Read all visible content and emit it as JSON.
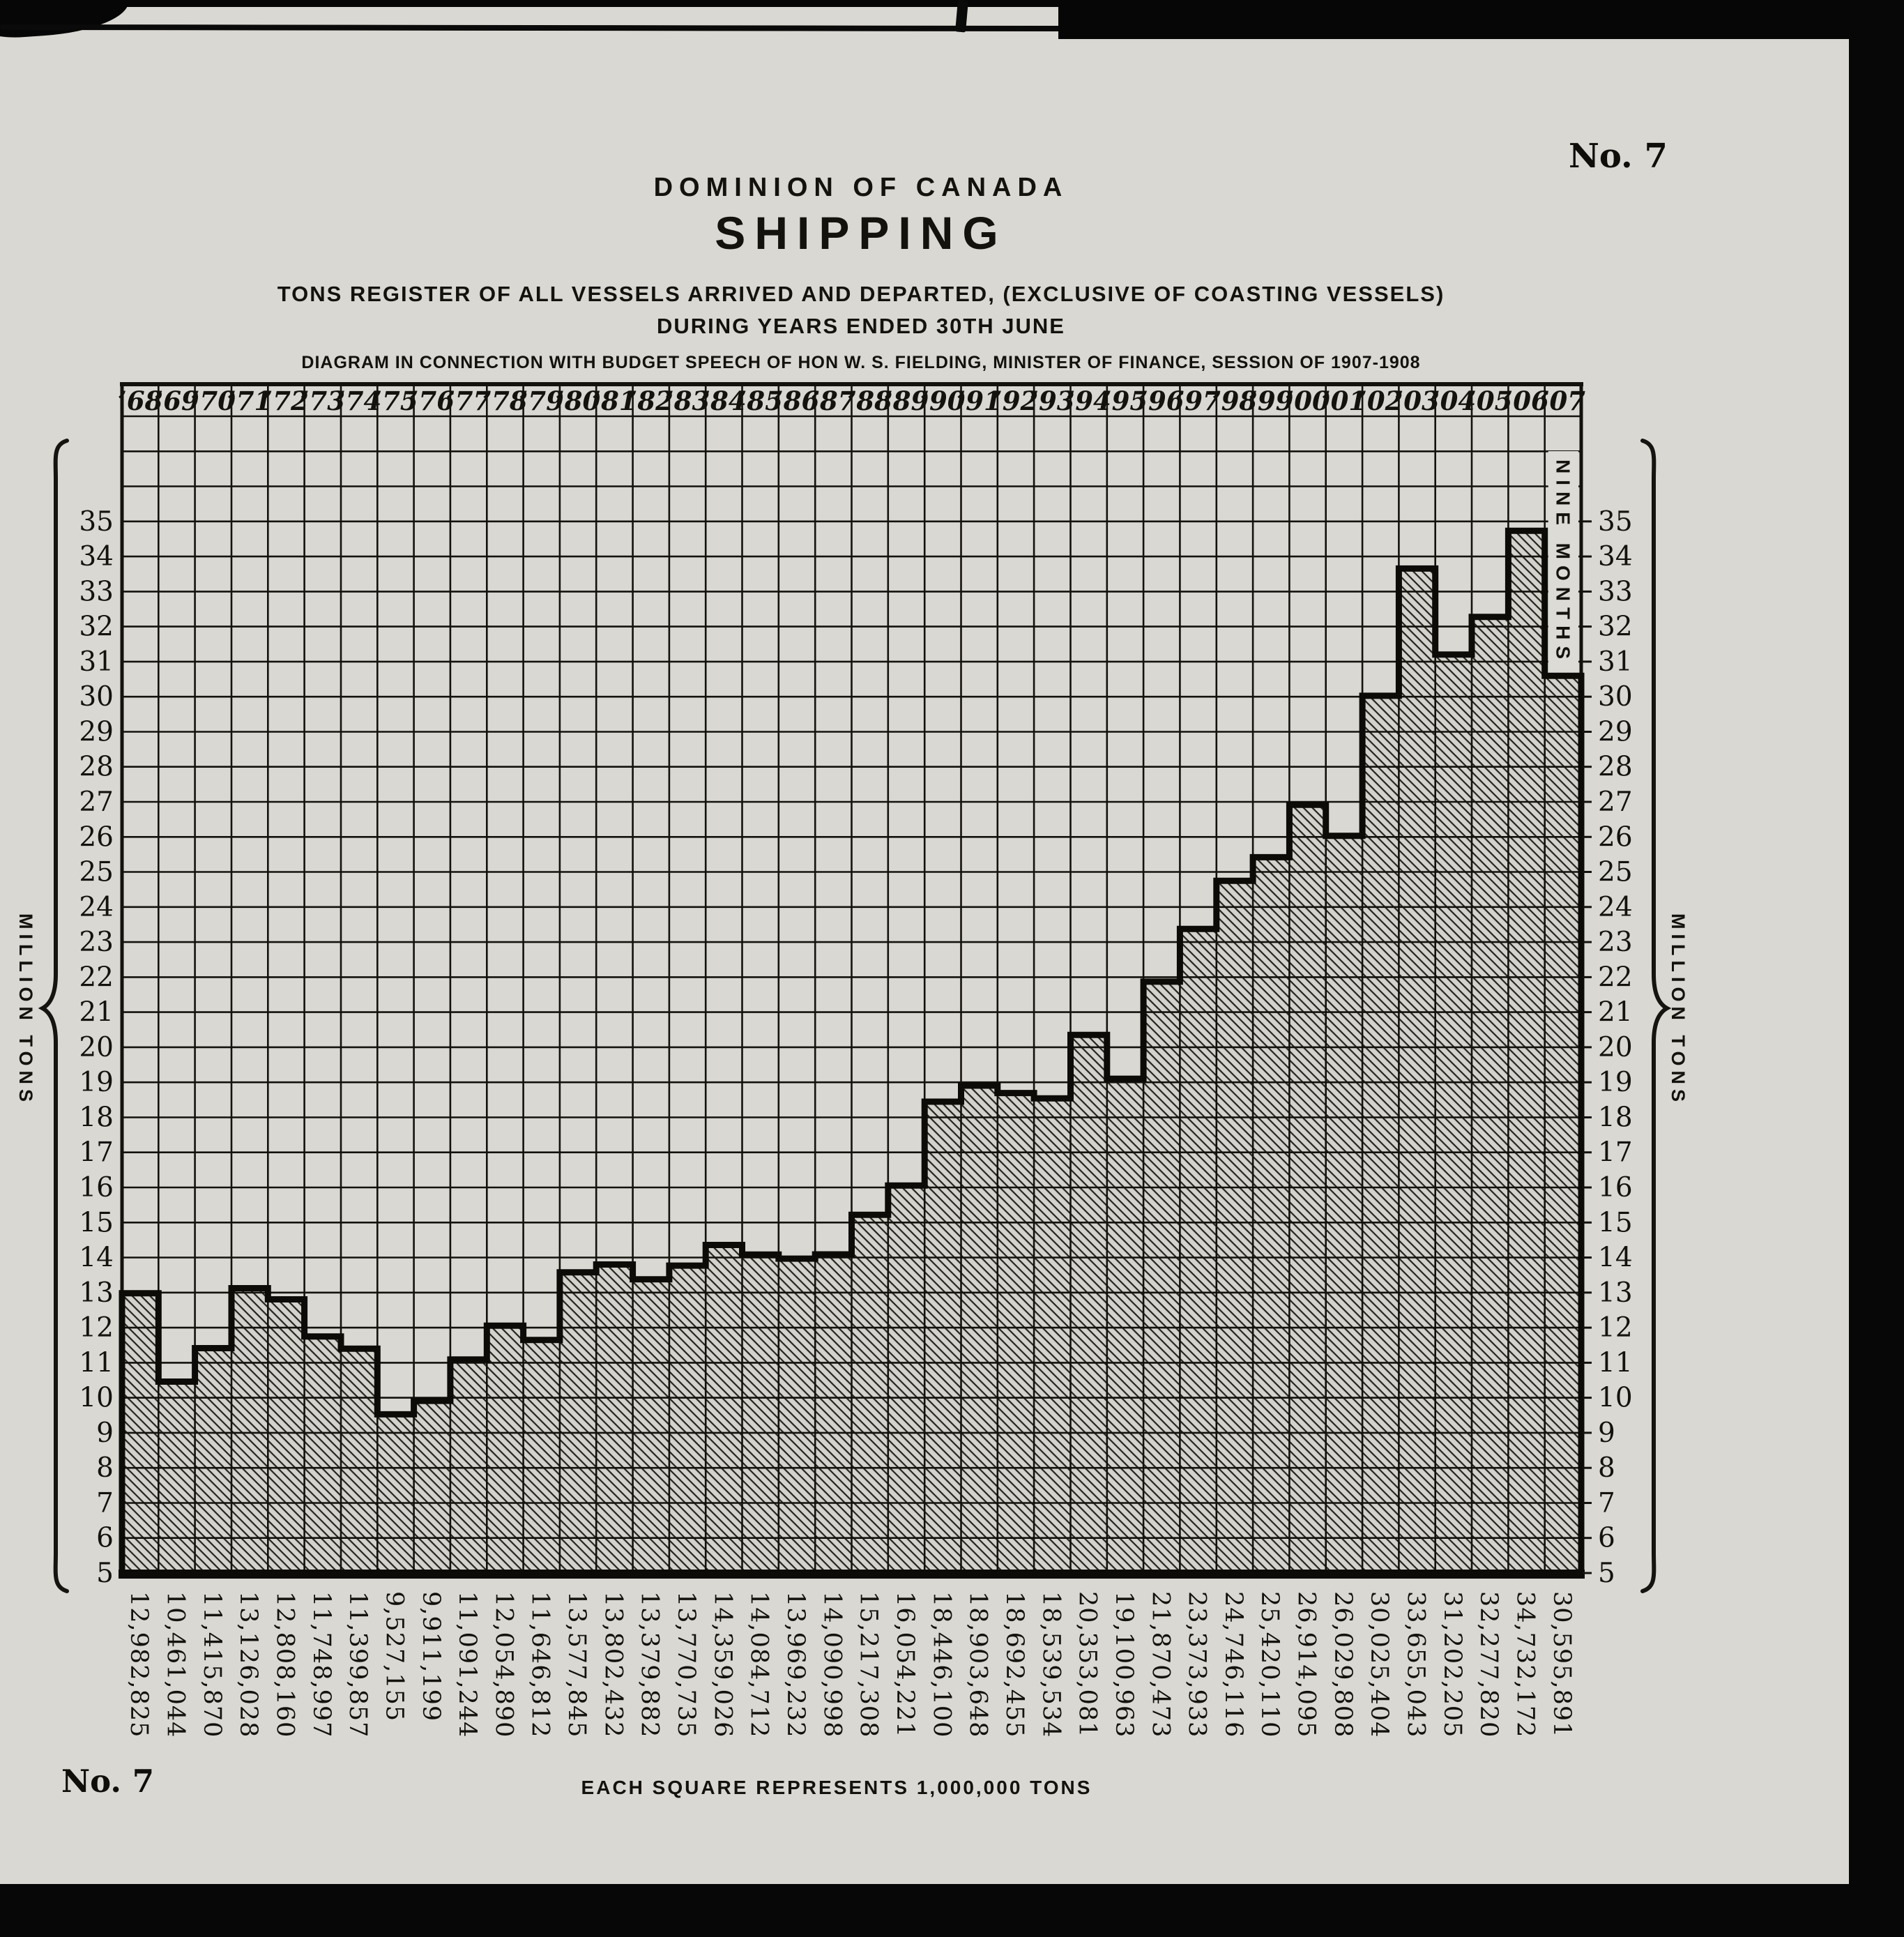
{
  "page": {
    "no7_top": "No. 7",
    "no7_bottom": "No. 7",
    "title_small": "DOMINION OF CANADA",
    "title_large": "SHIPPING",
    "subtitle1": "TONS REGISTER OF ALL VESSELS ARRIVED AND DEPARTED, (EXCLUSIVE OF COASTING VESSELS)",
    "subtitle2": "DURING YEARS ENDED 30TH JUNE",
    "credit": "DIAGRAM IN CONNECTION WITH BUDGET SPEECH OF HON W. S. FIELDING, MINISTER OF FINANCE, SESSION OF 1907-1908",
    "caption": "EACH SQUARE REPRESENTS 1,000,000 TONS",
    "left_axis_label": "MILLION TONS",
    "right_axis_label": "MILLION TONS",
    "nine_months": "NINE MONTHS"
  },
  "colors": {
    "paper": "#d9d8d2",
    "ink": "#14120d",
    "scan_black": "#070707"
  },
  "chart_data": {
    "type": "area",
    "title": "SHIPPING — Tons register of all vessels arrived and departed (exclusive of coasting vessels) during years ended 30th June",
    "x": [
      "’68",
      "’69",
      "’70",
      "’71",
      "’72",
      "’73",
      "’74",
      "’75",
      "’76",
      "’77",
      "’78",
      "’79",
      "’80",
      "’81",
      "’82",
      "’83",
      "’84",
      "’85",
      "’86",
      "’87",
      "’88",
      "’89",
      "’90",
      "’91",
      "’92",
      "’93",
      "’94",
      "’95",
      "’96",
      "’97",
      "’98",
      "’99",
      "’00",
      "’01",
      "’02",
      "’03",
      "’04",
      "’05",
      "’06",
      "’07"
    ],
    "values_tons": [
      12982825,
      10461044,
      11415870,
      13126028,
      12808160,
      11748997,
      11399857,
      9527155,
      9911199,
      11091244,
      12054890,
      11646812,
      13577845,
      13802432,
      13379882,
      13770735,
      14359026,
      14084712,
      13969232,
      14090998,
      15217308,
      16054221,
      18446100,
      18903648,
      18692455,
      18539534,
      20353081,
      19100963,
      21870473,
      23373933,
      24746116,
      25420110,
      26914095,
      26029808,
      30025404,
      33655043,
      31202205,
      32277820,
      34732172,
      30595891
    ],
    "value_labels": [
      "12,982,825",
      "10,461,044",
      "11,415,870",
      "13,126,028",
      "12,808,160",
      "11,748,997",
      "11,399,857",
      "9,527,155",
      "9,911,199",
      "11,091,244",
      "12,054,890",
      "11,646,812",
      "13,577,845",
      "13,802,432",
      "13,379,882",
      "13,770,735",
      "14,359,026",
      "14,084,712",
      "13,969,232",
      "14,090,998",
      "15,217,308",
      "16,054,221",
      "18,446,100",
      "18,903,648",
      "18,692,455",
      "18,539,534",
      "20,353,081",
      "19,100,963",
      "21,870,473",
      "23,373,933",
      "24,746,116",
      "25,420,110",
      "26,914,095",
      "26,029,808",
      "30,025,404",
      "33,655,043",
      "31,202,205",
      "32,277,820",
      "34,732,172",
      "30,595,891"
    ],
    "ylabel": "MILLION TONS",
    "y_ticks": [
      5,
      6,
      7,
      8,
      9,
      10,
      11,
      12,
      13,
      14,
      15,
      16,
      17,
      18,
      19,
      20,
      21,
      22,
      23,
      24,
      25,
      26,
      27,
      28,
      29,
      30,
      31,
      32,
      33,
      34,
      35
    ],
    "ylim": [
      5,
      38
    ],
    "grid": true,
    "unit_note": "EACH SQUARE REPRESENTS 1,000,000 TONS",
    "annotation": "NINE MONTHS",
    "legend_position": "none"
  }
}
